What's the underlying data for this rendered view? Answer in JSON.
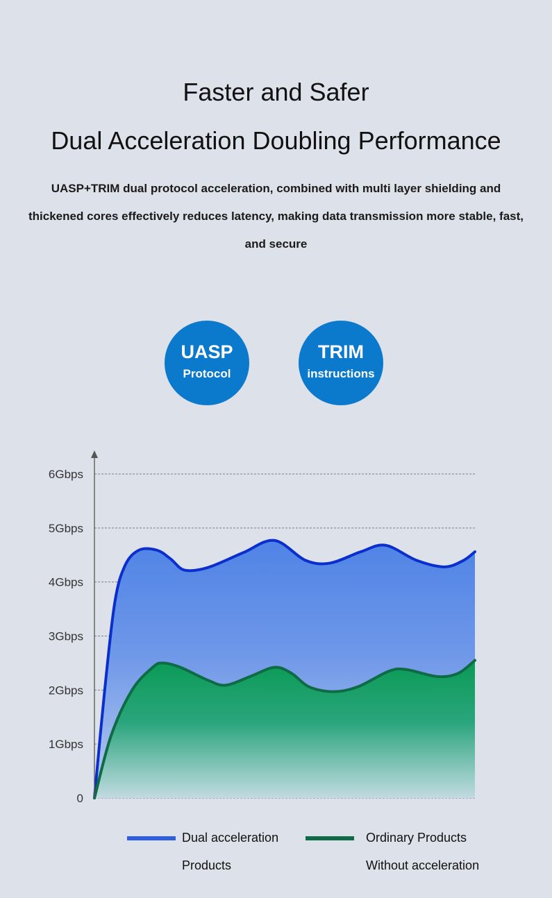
{
  "header": {
    "title_line1": "Faster and Safer",
    "title_line2": "Dual Acceleration Doubling Performance",
    "description": "UASP+TRIM dual protocol acceleration, combined with multi layer shielding and thickened cores effectively reduces latency, making data transmission more stable, fast, and secure"
  },
  "badges": [
    {
      "title": "UASP",
      "subtitle": "Protocol"
    },
    {
      "title": "TRIM",
      "subtitle": "instructions"
    }
  ],
  "colors": {
    "background": "#dde1ea",
    "badge": "#0c7acc",
    "dual": "#0a2fcc",
    "ordinary": "#0e6b45"
  },
  "chart_data": {
    "type": "area",
    "title": "",
    "xlabel": "",
    "ylabel": "",
    "ylim": [
      0,
      6
    ],
    "xlim": [
      0,
      100
    ],
    "y_ticks": [
      0,
      1,
      2,
      3,
      4,
      5,
      6
    ],
    "y_tick_labels": [
      "0",
      "1Gbps",
      "2Gbps",
      "3Gbps",
      "4Gbps",
      "5Gbps",
      "6Gbps"
    ],
    "grid": true,
    "legend_placement": "bottom",
    "series": [
      {
        "name": "Dual acceleration Products",
        "legend": [
          "Dual acceleration",
          "Products"
        ],
        "color": "#0a2fcc",
        "points": [
          [
            0,
            0
          ],
          [
            2.6,
            1.93
          ],
          [
            5.3,
            3.6
          ],
          [
            8,
            4.3
          ],
          [
            11.7,
            4.59
          ],
          [
            16.4,
            4.59
          ],
          [
            20,
            4.43
          ],
          [
            23.7,
            4.22
          ],
          [
            29.9,
            4.27
          ],
          [
            39,
            4.54
          ],
          [
            47.3,
            4.77
          ],
          [
            55.5,
            4.4
          ],
          [
            61.9,
            4.35
          ],
          [
            70,
            4.56
          ],
          [
            76.5,
            4.68
          ],
          [
            84.7,
            4.4
          ],
          [
            92,
            4.28
          ],
          [
            97,
            4.4
          ],
          [
            100,
            4.56
          ]
        ]
      },
      {
        "name": "Ordinary Products Without acceleration",
        "legend": [
          "Ordinary Products",
          "Without acceleration"
        ],
        "color": "#0e6b45",
        "points": [
          [
            0,
            0
          ],
          [
            4.4,
            1.16
          ],
          [
            9.9,
            2.0
          ],
          [
            15.3,
            2.42
          ],
          [
            18,
            2.5
          ],
          [
            22.6,
            2.42
          ],
          [
            29.9,
            2.18
          ],
          [
            34.5,
            2.09
          ],
          [
            40.9,
            2.25
          ],
          [
            47.3,
            2.42
          ],
          [
            51.8,
            2.31
          ],
          [
            56.4,
            2.06
          ],
          [
            62.8,
            1.97
          ],
          [
            69.2,
            2.06
          ],
          [
            77.4,
            2.35
          ],
          [
            81.9,
            2.38
          ],
          [
            90.1,
            2.25
          ],
          [
            95.6,
            2.31
          ],
          [
            100,
            2.55
          ]
        ]
      }
    ]
  }
}
